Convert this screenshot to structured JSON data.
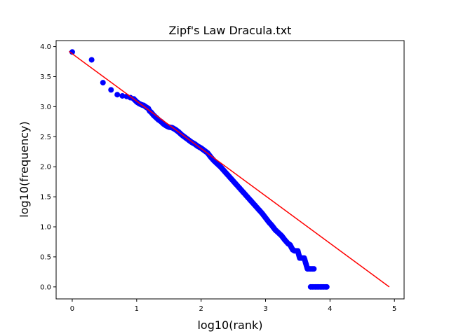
{
  "chart_data": {
    "type": "scatter",
    "title": "Zipf's Law Dracula.txt",
    "xlabel": "log10(rank)",
    "ylabel": "log10(frequency)",
    "xlim": [
      -0.25,
      5.15
    ],
    "ylim": [
      -0.2,
      4.1
    ],
    "xticks": [
      0,
      1,
      2,
      3,
      4,
      5
    ],
    "xtick_labels": [
      "0",
      "1",
      "2",
      "3",
      "4",
      "5"
    ],
    "yticks": [
      0.0,
      0.5,
      1.0,
      1.5,
      2.0,
      2.5,
      3.0,
      3.5,
      4.0
    ],
    "ytick_labels": [
      "0.0",
      "0.5",
      "1.0",
      "1.5",
      "2.0",
      "2.5",
      "3.0",
      "3.5",
      "4.0"
    ],
    "grid": false,
    "series": [
      {
        "kind": "scatter",
        "color": "#0000ff",
        "points": [
          [
            0.0,
            3.91
          ],
          [
            0.301,
            3.78
          ],
          [
            0.477,
            3.4
          ],
          [
            0.602,
            3.28
          ],
          [
            0.699,
            3.2
          ],
          [
            0.778,
            3.18
          ],
          [
            0.845,
            3.17
          ],
          [
            0.903,
            3.15
          ],
          [
            0.954,
            3.13
          ],
          [
            1.0,
            3.08
          ],
          [
            1.04,
            3.05
          ],
          [
            1.08,
            3.03
          ],
          [
            1.11,
            3.02
          ],
          [
            1.15,
            2.99
          ],
          [
            1.18,
            2.97
          ],
          [
            1.2,
            2.93
          ],
          [
            1.23,
            2.9
          ],
          [
            1.26,
            2.86
          ],
          [
            1.3,
            2.82
          ],
          [
            1.34,
            2.78
          ],
          [
            1.38,
            2.75
          ],
          [
            1.42,
            2.71
          ],
          [
            1.46,
            2.68
          ],
          [
            1.5,
            2.66
          ],
          [
            1.55,
            2.65
          ],
          [
            1.6,
            2.62
          ],
          [
            1.65,
            2.58
          ],
          [
            1.7,
            2.53
          ],
          [
            1.75,
            2.49
          ],
          [
            1.8,
            2.45
          ],
          [
            1.85,
            2.41
          ],
          [
            1.9,
            2.38
          ],
          [
            1.95,
            2.34
          ],
          [
            2.0,
            2.31
          ],
          [
            2.05,
            2.27
          ],
          [
            2.1,
            2.23
          ],
          [
            2.15,
            2.16
          ],
          [
            2.2,
            2.1
          ],
          [
            2.25,
            2.05
          ],
          [
            2.3,
            2.0
          ],
          [
            2.35,
            1.94
          ],
          [
            2.4,
            1.88
          ],
          [
            2.45,
            1.82
          ],
          [
            2.5,
            1.76
          ],
          [
            2.55,
            1.7
          ],
          [
            2.6,
            1.64
          ],
          [
            2.65,
            1.58
          ],
          [
            2.7,
            1.52
          ],
          [
            2.75,
            1.46
          ],
          [
            2.8,
            1.4
          ],
          [
            2.85,
            1.34
          ],
          [
            2.9,
            1.28
          ],
          [
            2.95,
            1.22
          ],
          [
            3.0,
            1.15
          ],
          [
            3.05,
            1.08
          ],
          [
            3.1,
            1.02
          ],
          [
            3.15,
            0.95
          ],
          [
            3.2,
            0.9
          ],
          [
            3.25,
            0.85
          ],
          [
            3.3,
            0.78
          ],
          [
            3.35,
            0.72
          ],
          [
            3.38,
            0.7
          ],
          [
            3.42,
            0.62
          ],
          [
            3.45,
            0.6
          ],
          [
            3.5,
            0.6
          ],
          [
            3.53,
            0.48
          ],
          [
            3.6,
            0.48
          ],
          [
            3.65,
            0.3
          ],
          [
            3.7,
            0.3
          ],
          [
            3.75,
            0.3
          ],
          [
            3.7,
            0.0
          ],
          [
            3.75,
            0.0
          ],
          [
            3.8,
            0.0
          ],
          [
            3.85,
            0.0
          ],
          [
            3.9,
            0.0
          ],
          [
            3.95,
            0.0
          ]
        ]
      },
      {
        "kind": "line",
        "color": "#ff0000",
        "points": [
          [
            -0.05,
            3.92
          ],
          [
            4.92,
            0.0
          ]
        ]
      }
    ]
  }
}
